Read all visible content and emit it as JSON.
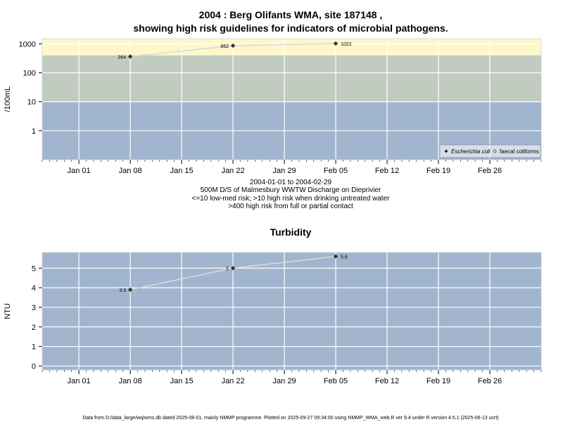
{
  "figure": {
    "title_line1": "2004 : Berg Olifants WMA, site 187148 ,",
    "title_line2": "showing high risk guidelines for indicators of microbial pathogens.",
    "caption_line1": "2004-01-01 to 2004-02-29",
    "caption_line2": "500M D/S of Malmesbury WWTW Discharge on Dieprivier",
    "caption_line3": "<=10 low-med risk; >10 high risk when drinking untreated water",
    "caption_line4": ">400 high risk from full or partial contact",
    "footer": "Data from D:/data_large/wq/wms.db dated 2025-08-01, mainly NMMP programme. Plotted on 2025-09-27 09:34:00 using NMMP_WMA_web.R ver 9.4 under R version 4.5.1 (2025-06-13 ucrt)"
  },
  "colors": {
    "band_low": "#a2b5ce",
    "band_mid": "#c1cbc0",
    "band_high": "#fdf7ca",
    "grid": "#ffffff",
    "line": "#d9d9d9",
    "point": "#333333"
  },
  "chart_data": [
    {
      "type": "line",
      "ylabel": "/100mL",
      "scale": "log",
      "ylim": [
        0.1,
        1500
      ],
      "xlim": [
        "2003-12-27",
        "2004-03-04"
      ],
      "yticks": [
        1,
        10,
        100,
        1000
      ],
      "ytick_labels": [
        "1",
        "10",
        "100",
        "1000"
      ],
      "xticks": [
        "2004-01-01",
        "2004-01-08",
        "2004-01-15",
        "2004-01-22",
        "2004-01-29",
        "2004-02-05",
        "2004-02-12",
        "2004-02-19",
        "2004-02-26"
      ],
      "xtick_labels": [
        "Jan 01",
        "Jan 08",
        "Jan 15",
        "Jan 22",
        "Jan 29",
        "Feb 05",
        "Feb 12",
        "Feb 19",
        "Feb 26"
      ],
      "bands": [
        {
          "from": 0.1,
          "to": 10,
          "color": "#a2b5ce"
        },
        {
          "from": 10,
          "to": 400,
          "color": "#c1cbc0"
        },
        {
          "from": 400,
          "to": 1500,
          "color": "#fdf7ca"
        }
      ],
      "series": [
        {
          "name": "Escherichia coli",
          "x": [
            "2004-01-08",
            "2004-01-22",
            "2004-02-05"
          ],
          "y": [
            364,
            862,
            1022
          ],
          "labels": [
            "364",
            "862",
            "1022"
          ]
        }
      ],
      "legend": {
        "position": "bottom-right",
        "entries": [
          "Escherichia coli",
          "faecal coliforms"
        ]
      },
      "grid": true
    },
    {
      "type": "line",
      "title": "Turbidity",
      "ylabel": "NTU",
      "ylim": [
        -0.2,
        5.8
      ],
      "xlim": [
        "2003-12-27",
        "2004-03-04"
      ],
      "yticks": [
        0,
        1,
        2,
        3,
        4,
        5
      ],
      "ytick_labels": [
        "0",
        "1",
        "2",
        "3",
        "4",
        "5"
      ],
      "xticks": [
        "2004-01-01",
        "2004-01-08",
        "2004-01-15",
        "2004-01-22",
        "2004-01-29",
        "2004-02-05",
        "2004-02-12",
        "2004-02-19",
        "2004-02-26"
      ],
      "xtick_labels": [
        "Jan 01",
        "Jan 08",
        "Jan 15",
        "Jan 22",
        "Jan 29",
        "Feb 05",
        "Feb 12",
        "Feb 19",
        "Feb 26"
      ],
      "series": [
        {
          "x": [
            "2004-01-08",
            "2004-01-22",
            "2004-02-05"
          ],
          "y": [
            3.9,
            5,
            5.6
          ],
          "labels": [
            "3.9",
            "5",
            "5.6"
          ]
        }
      ],
      "grid": true
    }
  ]
}
